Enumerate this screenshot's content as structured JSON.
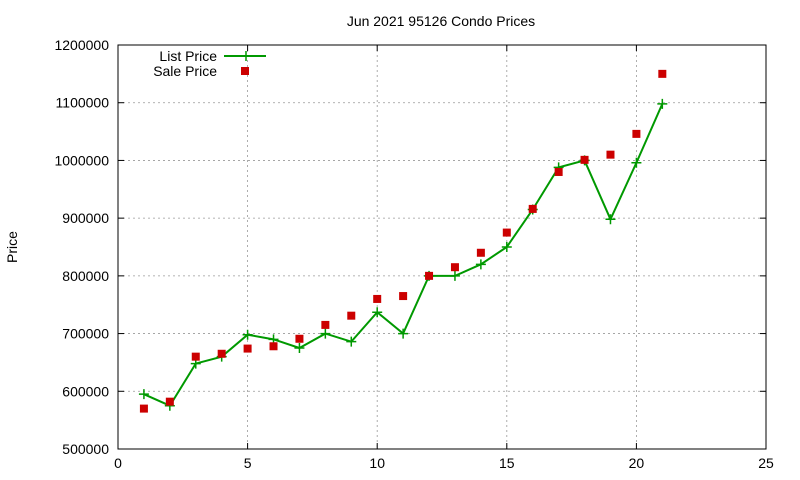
{
  "chart_data": {
    "type": "line",
    "title": "Jun 2021 95126 Condo Prices",
    "xlabel": "",
    "ylabel": "Price",
    "xlim": [
      0,
      25
    ],
    "ylim": [
      500000,
      1200000
    ],
    "xticks": [
      0,
      5,
      10,
      15,
      20,
      25
    ],
    "yticks": [
      500000,
      600000,
      700000,
      800000,
      900000,
      1000000,
      1100000,
      1200000
    ],
    "grid": true,
    "legend_position": "top-left",
    "series": [
      {
        "name": "List Price",
        "style": "line-with-plus-markers",
        "color": "#009900",
        "x": [
          1,
          2,
          3,
          4,
          5,
          6,
          7,
          8,
          9,
          10,
          11,
          12,
          13,
          14,
          15,
          16,
          17,
          18,
          19,
          20,
          21
        ],
        "y": [
          595000,
          575000,
          648000,
          660000,
          698000,
          690000,
          675000,
          700000,
          686000,
          737000,
          700000,
          800000,
          800000,
          820000,
          850000,
          915000,
          988000,
          1000000,
          898000,
          996000,
          1098000
        ]
      },
      {
        "name": "Sale Price",
        "style": "square-markers",
        "color": "#cc0000",
        "x": [
          1,
          2,
          3,
          4,
          5,
          6,
          7,
          8,
          9,
          10,
          11,
          12,
          13,
          14,
          15,
          16,
          17,
          18,
          19,
          20,
          21
        ],
        "y": [
          570000,
          582000,
          660000,
          665000,
          674000,
          678000,
          691000,
          715000,
          731000,
          760000,
          765000,
          800000,
          815000,
          840000,
          875000,
          916000,
          980000,
          1001000,
          1010000,
          1046000,
          1150000
        ]
      }
    ]
  }
}
